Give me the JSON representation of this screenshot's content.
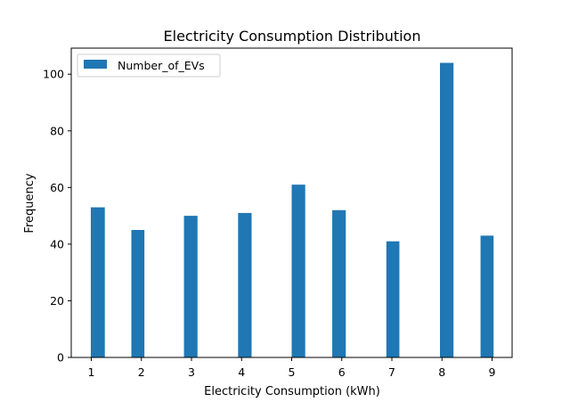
{
  "chart_data": {
    "type": "histogram",
    "title": "Electricity Consumption Distribution",
    "xlabel": "Electricity Consumption (kWh)",
    "ylabel": "Frequency",
    "xlim": [
      0.6,
      9.4
    ],
    "ylim": [
      0,
      109.2
    ],
    "x_ticks": [
      1,
      2,
      3,
      4,
      5,
      6,
      7,
      8,
      9
    ],
    "y_ticks": [
      0,
      20,
      40,
      60,
      80,
      100
    ],
    "bins": [
      {
        "x0": 0.99,
        "x1": 1.27,
        "value": 53
      },
      {
        "x0": 1.8,
        "x1": 2.06,
        "value": 45
      },
      {
        "x0": 2.85,
        "x1": 3.12,
        "value": 50
      },
      {
        "x0": 3.93,
        "x1": 4.2,
        "value": 51
      },
      {
        "x0": 5.0,
        "x1": 5.27,
        "value": 61
      },
      {
        "x0": 5.81,
        "x1": 6.08,
        "value": 52
      },
      {
        "x0": 6.89,
        "x1": 7.15,
        "value": 41
      },
      {
        "x0": 7.96,
        "x1": 8.23,
        "value": 104
      },
      {
        "x0": 8.77,
        "x1": 9.03,
        "value": 43
      }
    ],
    "series": [
      {
        "name": "Number_of_EVs"
      }
    ],
    "colors": {
      "bar": "#1f77b4"
    },
    "legend": {
      "position": "upper-left"
    },
    "grid": false
  }
}
